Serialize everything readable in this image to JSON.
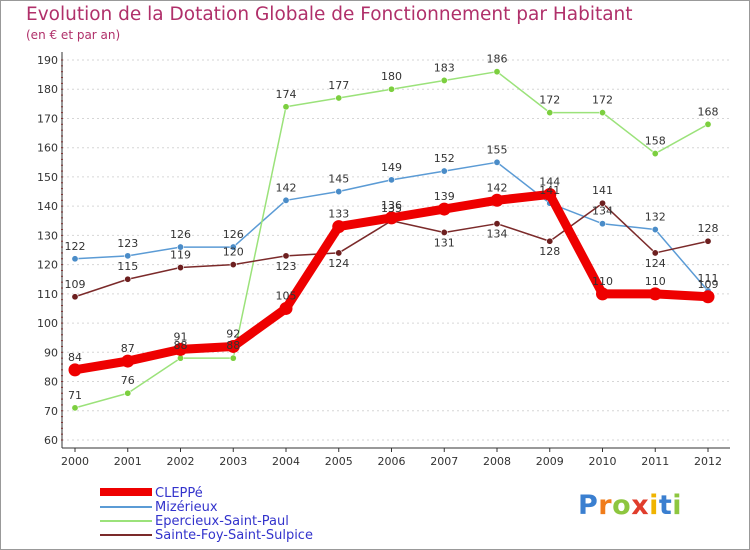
{
  "title": "Evolution de la Dotation Globale de Fonctionnement par Habitant",
  "subtitle": "(en € et par an)",
  "logo": {
    "text": "Proxiti",
    "letters": [
      "P",
      "r",
      "o",
      "x",
      "i",
      "t",
      "i"
    ],
    "colors": [
      "#3a7fd0",
      "#f07c1a",
      "#8dc63f",
      "#e03d2c",
      "#f0b400",
      "#3a7fd0",
      "#8dc63f"
    ]
  },
  "chart_data": {
    "type": "line",
    "title": "Evolution de la Dotation Globale de Fonctionnement par Habitant",
    "subtitle": "(en € et par an)",
    "xlabel": "",
    "ylabel": "",
    "ylim": [
      60,
      190
    ],
    "yticks": [
      60,
      70,
      80,
      90,
      100,
      110,
      120,
      130,
      140,
      150,
      160,
      170,
      180,
      190
    ],
    "categories": [
      "2000",
      "2001",
      "2002",
      "2003",
      "2004",
      "2005",
      "2006",
      "2007",
      "2008",
      "2009",
      "2010",
      "2011",
      "2012"
    ],
    "legend_position": "bottom-left",
    "series": [
      {
        "name": "Mizérieux",
        "color": "#5b9bd5",
        "marker": "#4a8cc8",
        "values": [
          122,
          123,
          126,
          126,
          142,
          145,
          149,
          152,
          155,
          141,
          134,
          132,
          111
        ]
      },
      {
        "name": "Epercieux-Saint-Paul",
        "color": "#9be27a",
        "marker": "#7ccf3f",
        "values": [
          71,
          76,
          88,
          88,
          174,
          177,
          180,
          183,
          186,
          172,
          172,
          158,
          168
        ]
      },
      {
        "name": "Sainte-Foy-Saint-Sulpice",
        "color": "#7b2a2a",
        "marker": "#6d1f1f",
        "values": [
          109,
          115,
          119,
          120,
          123,
          124,
          135,
          131,
          134,
          128,
          141,
          124,
          128
        ]
      },
      {
        "name": "CLEPPé",
        "color": "#ee0000",
        "marker": "#ee0000",
        "values": [
          84,
          87,
          91,
          92,
          105,
          133,
          136,
          139,
          142,
          144,
          110,
          110,
          109
        ]
      }
    ]
  }
}
